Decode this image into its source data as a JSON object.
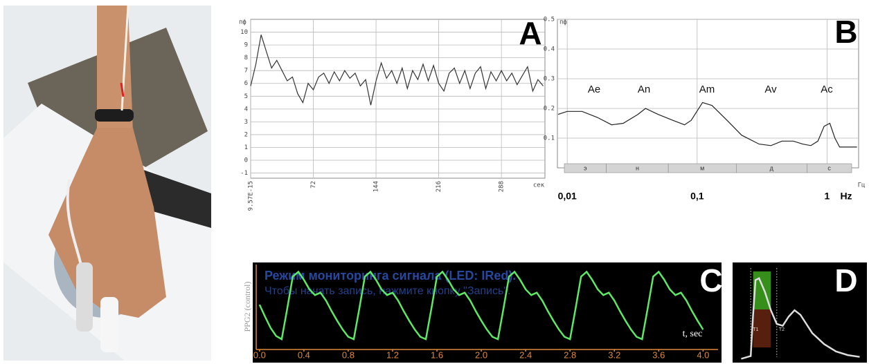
{
  "chart_data": [
    {
      "type": "line",
      "panel_label": "A",
      "y_label": "пф",
      "x_label": "сек",
      "color": "#333333",
      "x": [
        0,
        6,
        12,
        18,
        24,
        30,
        36,
        42,
        48,
        54,
        60,
        66,
        72,
        78,
        84,
        90,
        96,
        102,
        108,
        114,
        120,
        126,
        132,
        138,
        144,
        150,
        156,
        162,
        168,
        174,
        180,
        186,
        192,
        198,
        204,
        210,
        216,
        222,
        228,
        234,
        240,
        246,
        252,
        258,
        264,
        270,
        276,
        282,
        288,
        294,
        300,
        306,
        312,
        318,
        324,
        330,
        336
      ],
      "values": [
        5.8,
        7.5,
        9.8,
        8.5,
        7.2,
        7.8,
        7.0,
        6.2,
        6.5,
        5.2,
        4.5,
        6.0,
        5.5,
        6.5,
        6.8,
        6.0,
        6.9,
        6.2,
        7.0,
        6.4,
        6.8,
        5.8,
        6.3,
        4.3,
        6.2,
        7.6,
        6.4,
        7.0,
        6.0,
        7.2,
        5.6,
        7.0,
        6.3,
        7.5,
        6.2,
        7.4,
        6.0,
        5.4,
        6.8,
        7.2,
        6.0,
        7.0,
        5.6,
        6.8,
        7.3,
        5.6,
        6.9,
        6.2,
        7.0,
        6.2,
        6.8,
        5.9,
        6.6,
        7.3,
        5.4,
        6.3,
        5.8
      ],
      "xlim": [
        0,
        338
      ],
      "ylim": [
        -1.4,
        11
      ],
      "xticks": [
        {
          "value": 9.57e-15,
          "label": "9.57E-15"
        },
        72,
        144,
        216,
        288
      ],
      "yticks": [
        -1,
        0,
        1,
        2,
        3,
        4,
        5,
        6,
        7,
        8,
        9,
        10
      ],
      "grid": true
    },
    {
      "type": "line",
      "panel_label": "B",
      "y_label": "пф",
      "x_label": "Гц",
      "x_unit": "Hz",
      "color": "#222222",
      "xscale": "log",
      "x": [
        0.0085,
        0.01,
        0.013,
        0.017,
        0.022,
        0.027,
        0.035,
        0.04,
        0.05,
        0.065,
        0.08,
        0.09,
        0.11,
        0.13,
        0.17,
        0.22,
        0.3,
        0.37,
        0.45,
        0.55,
        0.65,
        0.75,
        0.85,
        0.95,
        1.05,
        1.15,
        1.25,
        1.7
      ],
      "values": [
        0.18,
        0.19,
        0.19,
        0.17,
        0.145,
        0.15,
        0.18,
        0.2,
        0.18,
        0.16,
        0.145,
        0.16,
        0.22,
        0.21,
        0.16,
        0.11,
        0.08,
        0.075,
        0.09,
        0.09,
        0.08,
        0.075,
        0.09,
        0.14,
        0.15,
        0.1,
        0.07,
        0.07
      ],
      "xlim": [
        0.0084,
        1.75
      ],
      "ylim": [
        0,
        0.5
      ],
      "xticks": [
        {
          "value": 0.01,
          "label": "0,01"
        },
        {
          "value": 0.1,
          "label": "0,1"
        },
        1
      ],
      "yticks": [
        0.1,
        0.2,
        0.3,
        0.4,
        0.5
      ],
      "grid": true,
      "peak_labels": [
        "Ae",
        "An",
        "Am",
        "Av",
        "Ac"
      ],
      "bands": [
        {
          "label": "э",
          "range": [
            0.0095,
            0.02
          ]
        },
        {
          "label": "н",
          "range": [
            0.02,
            0.06
          ]
        },
        {
          "label": "м",
          "range": [
            0.06,
            0.2
          ]
        },
        {
          "label": "д",
          "range": [
            0.2,
            0.7
          ]
        },
        {
          "label": "с",
          "range": [
            0.7,
            2
          ]
        }
      ]
    },
    {
      "type": "line",
      "panel_label": "C",
      "y_label": "PPG2 (control)",
      "x_label": "t, sec",
      "color": "#5ee865",
      "overlay_text": [
        "Режим мониторинга сигнала (LED: IRed).",
        "Чтобы начать запись, нажмите кнопку \"Запись\"."
      ],
      "x": [
        0,
        0.05,
        0.1,
        0.15,
        0.2,
        0.25,
        0.3,
        0.35,
        0.4,
        0.45,
        0.5,
        0.55,
        0.6,
        0.65,
        0.7,
        0.75,
        0.8,
        0.85,
        0.9,
        0.95,
        1,
        1.05,
        1.1,
        1.15,
        1.2,
        1.25,
        1.3,
        1.35,
        1.4,
        1.45,
        1.5,
        1.55,
        1.6,
        1.65,
        1.7,
        1.75,
        1.8,
        1.85,
        1.9,
        1.95,
        2,
        2.05,
        2.1,
        2.15,
        2.2,
        2.25,
        2.3,
        2.35,
        2.4,
        2.45,
        2.5,
        2.55,
        2.6,
        2.65,
        2.7,
        2.75,
        2.8,
        2.85,
        2.9,
        2.95,
        3,
        3.05,
        3.1,
        3.15,
        3.2,
        3.25,
        3.3,
        3.35,
        3.4,
        3.45,
        3.5,
        3.55,
        3.6,
        3.65,
        3.7,
        3.75,
        3.8,
        3.85,
        3.9,
        3.95,
        4
      ],
      "values": [
        0.55,
        0.4,
        0.26,
        0.16,
        0.12,
        0.5,
        0.9,
        0.96,
        0.86,
        0.74,
        0.67,
        0.7,
        0.6,
        0.47,
        0.35,
        0.24,
        0.15,
        0.12,
        0.5,
        0.9,
        0.96,
        0.86,
        0.74,
        0.67,
        0.7,
        0.6,
        0.47,
        0.35,
        0.24,
        0.15,
        0.12,
        0.5,
        0.9,
        0.96,
        0.86,
        0.74,
        0.67,
        0.7,
        0.6,
        0.47,
        0.35,
        0.24,
        0.15,
        0.12,
        0.5,
        0.9,
        0.96,
        0.86,
        0.74,
        0.67,
        0.7,
        0.6,
        0.47,
        0.35,
        0.24,
        0.15,
        0.12,
        0.5,
        0.9,
        0.96,
        0.86,
        0.74,
        0.67,
        0.7,
        0.6,
        0.47,
        0.35,
        0.24,
        0.15,
        0.12,
        0.5,
        0.9,
        0.96,
        0.86,
        0.74,
        0.67,
        0.7,
        0.6,
        0.47,
        0.35,
        0.24
      ],
      "xlim": [
        -0.03,
        4.06
      ],
      "ylim": [
        0,
        1.05
      ],
      "xticks": [
        {
          "value": 0,
          "label": "0.0"
        },
        0.4,
        0.8,
        1.2,
        1.6,
        {
          "value": 2,
          "label": "2.0"
        },
        2.4,
        2.8,
        3.2,
        3.6,
        {
          "value": 4,
          "label": "4.0"
        }
      ],
      "grid": false
    },
    {
      "type": "line",
      "panel_label": "D",
      "color": "#dddddd",
      "annotations": [
        "T1",
        "T2"
      ],
      "x": [
        0,
        0.08,
        0.1,
        0.12,
        0.15,
        0.2,
        0.25,
        0.3,
        0.35,
        0.4,
        0.45,
        0.5,
        0.55,
        0.6,
        0.7,
        0.8,
        0.9,
        1.0
      ],
      "values": [
        0.02,
        0.05,
        0.5,
        0.88,
        0.9,
        0.75,
        0.55,
        0.4,
        0.38,
        0.48,
        0.55,
        0.5,
        0.4,
        0.3,
        0.18,
        0.1,
        0.06,
        0.04
      ],
      "xlim": [
        -0.05,
        1.05
      ],
      "ylim": [
        0,
        1.05
      ],
      "grid": false
    }
  ]
}
